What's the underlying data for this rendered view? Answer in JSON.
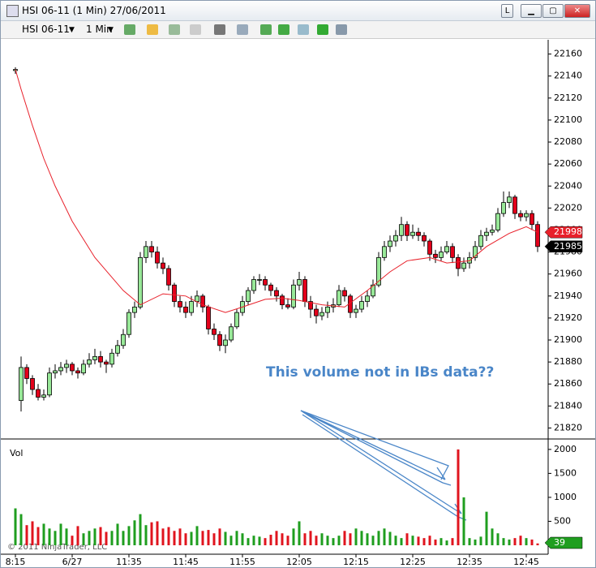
{
  "window": {
    "title": "HSI 06-11 (1 Min)  27/06/2011"
  },
  "toolbar": {
    "instrument": "HSI 06-11",
    "interval": "1 Min"
  },
  "chart_data": {
    "type": "candlestick",
    "up_color": "#98e898",
    "down_color": "#e3001b",
    "ema_color": "#e8202a",
    "ylim": [
      21810,
      22173
    ],
    "yticks": [
      22160,
      22140,
      22120,
      22100,
      22080,
      22060,
      22040,
      22020,
      22000,
      21980,
      21960,
      21940,
      21920,
      21900,
      21880,
      21860,
      21840,
      21820
    ],
    "xticks": [
      {
        "value": 0,
        "label": "8:15"
      },
      {
        "value": 10,
        "label": "6/27"
      },
      {
        "value": 20,
        "label": "11:35"
      },
      {
        "value": 30,
        "label": "11:45"
      },
      {
        "value": 40,
        "label": "11:55"
      },
      {
        "value": 50,
        "label": "12:05"
      },
      {
        "value": 60,
        "label": "12:15"
      },
      {
        "value": 70,
        "label": "12:25"
      },
      {
        "value": 80,
        "label": "12:35"
      },
      {
        "value": 90,
        "label": "12:45"
      }
    ],
    "ohlc": [
      [
        22145,
        22148,
        22142,
        22146
      ],
      [
        21845,
        21885,
        21835,
        21875
      ],
      [
        21875,
        21878,
        21860,
        21865
      ],
      [
        21865,
        21868,
        21850,
        21855
      ],
      [
        21855,
        21860,
        21845,
        21848
      ],
      [
        21848,
        21855,
        21845,
        21850
      ],
      [
        21850,
        21875,
        21848,
        21870
      ],
      [
        21870,
        21878,
        21865,
        21872
      ],
      [
        21872,
        21880,
        21868,
        21875
      ],
      [
        21875,
        21882,
        21870,
        21878
      ],
      [
        21878,
        21880,
        21868,
        21872
      ],
      [
        21872,
        21875,
        21865,
        21870
      ],
      [
        21870,
        21882,
        21868,
        21878
      ],
      [
        21878,
        21888,
        21875,
        21882
      ],
      [
        21882,
        21892,
        21878,
        21885
      ],
      [
        21885,
        21890,
        21875,
        21880
      ],
      [
        21880,
        21882,
        21870,
        21878
      ],
      [
        21878,
        21892,
        21875,
        21888
      ],
      [
        21888,
        21900,
        21885,
        21895
      ],
      [
        21895,
        21910,
        21892,
        21905
      ],
      [
        21905,
        21928,
        21902,
        21925
      ],
      [
        21925,
        21935,
        21920,
        21930
      ],
      [
        21930,
        21980,
        21928,
        21975
      ],
      [
        21975,
        21990,
        21970,
        21985
      ],
      [
        21985,
        21990,
        21975,
        21980
      ],
      [
        21980,
        21985,
        21965,
        21970
      ],
      [
        21970,
        21975,
        21960,
        21965
      ],
      [
        21965,
        21968,
        21945,
        21950
      ],
      [
        21950,
        21952,
        21930,
        21935
      ],
      [
        21935,
        21940,
        21925,
        21930
      ],
      [
        21930,
        21935,
        21920,
        21925
      ],
      [
        21925,
        21940,
        21922,
        21935
      ],
      [
        21935,
        21945,
        21930,
        21940
      ],
      [
        21940,
        21942,
        21925,
        21930
      ],
      [
        21930,
        21932,
        21905,
        21910
      ],
      [
        21910,
        21915,
        21900,
        21905
      ],
      [
        21905,
        21908,
        21890,
        21895
      ],
      [
        21895,
        21905,
        21888,
        21900
      ],
      [
        21900,
        21915,
        21898,
        21912
      ],
      [
        21912,
        21928,
        21910,
        21925
      ],
      [
        21925,
        21940,
        21922,
        21935
      ],
      [
        21935,
        21948,
        21932,
        21945
      ],
      [
        21945,
        21958,
        21942,
        21955
      ],
      [
        21955,
        21960,
        21950,
        21955
      ],
      [
        21955,
        21958,
        21945,
        21950
      ],
      [
        21950,
        21952,
        21940,
        21945
      ],
      [
        21945,
        21948,
        21935,
        21940
      ],
      [
        21940,
        21942,
        21928,
        21932
      ],
      [
        21932,
        21938,
        21928,
        21930
      ],
      [
        21930,
        21955,
        21928,
        21950
      ],
      [
        21950,
        21962,
        21945,
        21955
      ],
      [
        21955,
        21958,
        21930,
        21935
      ],
      [
        21935,
        21940,
        21920,
        21928
      ],
      [
        21928,
        21932,
        21915,
        21922
      ],
      [
        21922,
        21930,
        21918,
        21925
      ],
      [
        21925,
        21935,
        21920,
        21930
      ],
      [
        21930,
        21938,
        21925,
        21932
      ],
      [
        21932,
        21950,
        21930,
        21945
      ],
      [
        21945,
        21948,
        21935,
        21940
      ],
      [
        21940,
        21942,
        21920,
        21925
      ],
      [
        21925,
        21932,
        21920,
        21928
      ],
      [
        21928,
        21940,
        21925,
        21935
      ],
      [
        21935,
        21945,
        21930,
        21940
      ],
      [
        21940,
        21955,
        21938,
        21950
      ],
      [
        21950,
        21980,
        21948,
        21975
      ],
      [
        21975,
        21990,
        21972,
        21985
      ],
      [
        21985,
        21995,
        21980,
        21990
      ],
      [
        21990,
        22000,
        21985,
        21995
      ],
      [
        21995,
        22012,
        21990,
        22005
      ],
      [
        22005,
        22008,
        21990,
        21995
      ],
      [
        21995,
        22005,
        21992,
        21998
      ],
      [
        21998,
        22002,
        21990,
        21995
      ],
      [
        21995,
        21998,
        21985,
        21990
      ],
      [
        21990,
        21992,
        21972,
        21978
      ],
      [
        21978,
        21982,
        21970,
        21975
      ],
      [
        21975,
        21985,
        21972,
        21980
      ],
      [
        21980,
        21990,
        21978,
        21985
      ],
      [
        21985,
        21988,
        21970,
        21975
      ],
      [
        21975,
        21978,
        21958,
        21965
      ],
      [
        21965,
        21975,
        21962,
        21970
      ],
      [
        21970,
        21980,
        21965,
        21975
      ],
      [
        21975,
        21990,
        21972,
        21985
      ],
      [
        21985,
        22000,
        21982,
        21995
      ],
      [
        21995,
        22002,
        21990,
        21998
      ],
      [
        21998,
        22005,
        21995,
        22000
      ],
      [
        22000,
        22020,
        21998,
        22015
      ],
      [
        22015,
        22035,
        22012,
        22025
      ],
      [
        22025,
        22035,
        22020,
        22030
      ],
      [
        22030,
        22032,
        22010,
        22015
      ],
      [
        22015,
        22018,
        22008,
        22012
      ],
      [
        22012,
        22018,
        22008,
        22015
      ],
      [
        22015,
        22018,
        22000,
        22005
      ],
      [
        22005,
        22008,
        21980,
        21985
      ]
    ],
    "ema": {
      "x": [
        0,
        1,
        3,
        5,
        7,
        10,
        14,
        19,
        22,
        26,
        30,
        33,
        37,
        40,
        44,
        47,
        50,
        54,
        58,
        62,
        66,
        69,
        73,
        76,
        80,
        83,
        87,
        90,
        92
      ],
      "values": [
        22146,
        22128,
        22095,
        22065,
        22040,
        22008,
        21975,
        21945,
        21932,
        21942,
        21940,
        21932,
        21925,
        21930,
        21937,
        21938,
        21936,
        21932,
        21930,
        21945,
        21962,
        21972,
        21975,
        21970,
        21972,
        21985,
        21997,
        22003,
        21998
      ]
    },
    "volume_label": "Vol",
    "volume_up_color": "#1f9e1f",
    "volume_down_color": "#e0141e",
    "vol_ylim": [
      0,
      2150
    ],
    "vol_yticks": [
      500,
      1000,
      1500,
      2000
    ],
    "volume": [
      770,
      650,
      420,
      500,
      380,
      450,
      350,
      300,
      450,
      350,
      200,
      400,
      250,
      300,
      350,
      380,
      280,
      300,
      450,
      300,
      400,
      520,
      650,
      420,
      480,
      500,
      350,
      380,
      300,
      350,
      250,
      280,
      400,
      300,
      320,
      250,
      350,
      280,
      200,
      300,
      250,
      150,
      200,
      180,
      150,
      220,
      300,
      250,
      200,
      350,
      500,
      250,
      300,
      200,
      250,
      200,
      150,
      200,
      300,
      250,
      350,
      300,
      250,
      200,
      300,
      350,
      280,
      200,
      150,
      250,
      200,
      180,
      150,
      200,
      120,
      150,
      100,
      150,
      2000,
      1000,
      150,
      120,
      180,
      700,
      350,
      250,
      150,
      120,
      150,
      200,
      150,
      120,
      39
    ],
    "annotation": "This volume not in IBs data??",
    "copyright": "© 2011 NinjaTrader, LLC"
  }
}
